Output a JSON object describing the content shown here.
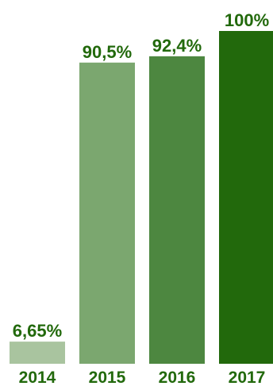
{
  "chart_data": {
    "type": "bar",
    "categories": [
      "2014",
      "2015",
      "2016",
      "2017"
    ],
    "values": [
      6.65,
      90.5,
      92.4,
      100
    ],
    "value_labels": [
      "6,65%",
      "90,5%",
      "92,4%",
      "100%"
    ],
    "unit": "%",
    "ylim": [
      0,
      100
    ],
    "grid": false,
    "legend": "none",
    "bar_colors": [
      "#a9c49f",
      "#7ba76f",
      "#4d8740",
      "#22690c"
    ],
    "label_color": "#22690c",
    "title": "",
    "xlabel": "",
    "ylabel": ""
  }
}
